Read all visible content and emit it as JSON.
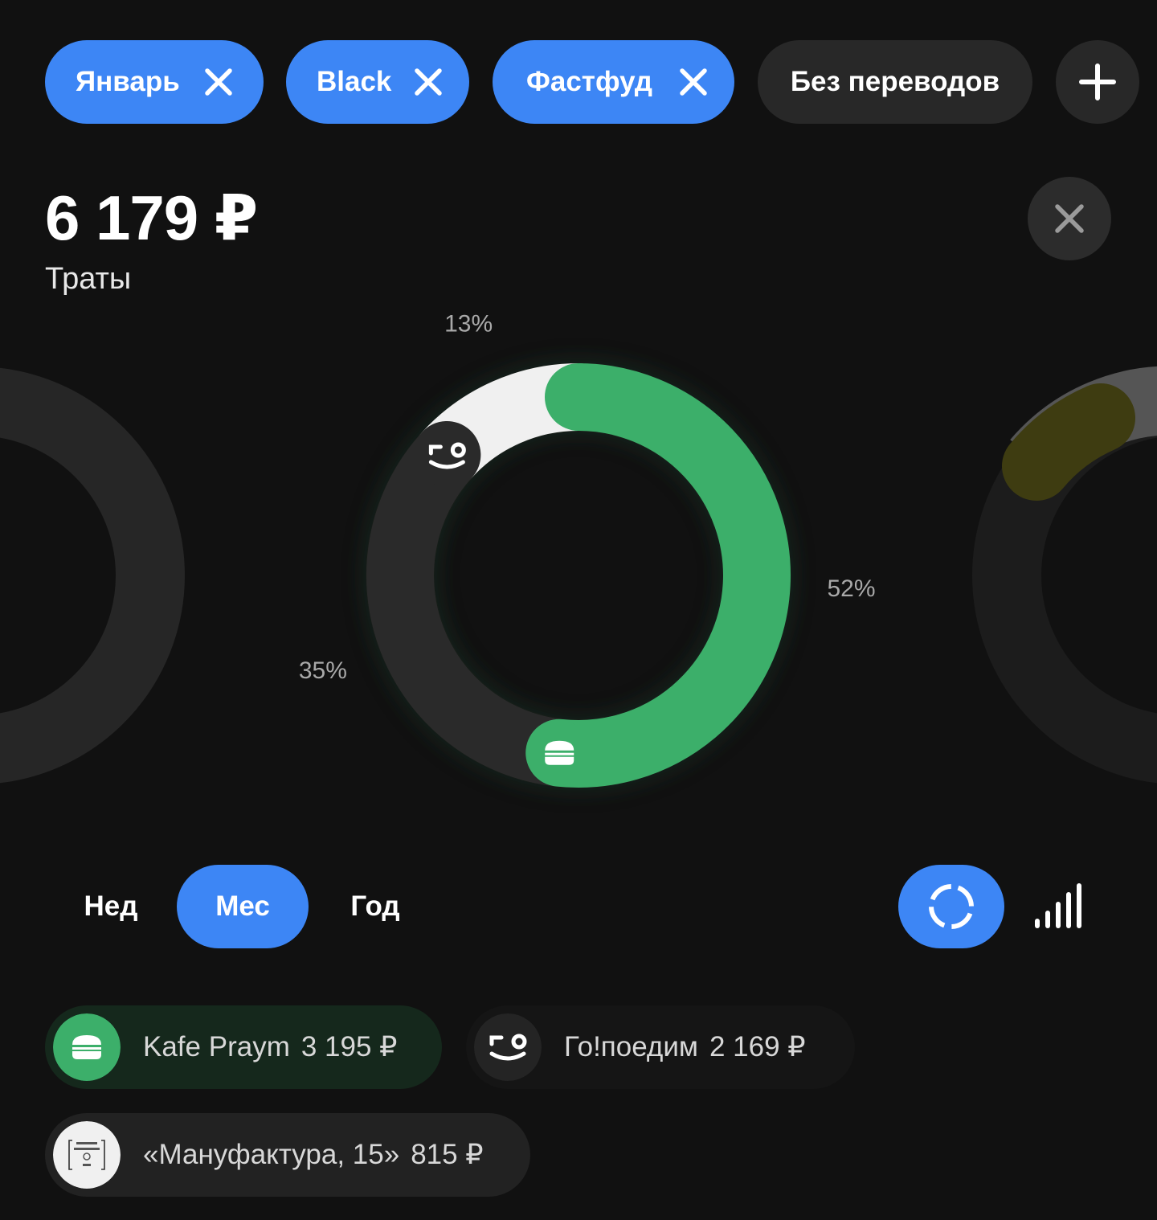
{
  "filters": {
    "chips": [
      {
        "label": "Январь",
        "active": true
      },
      {
        "label": "Black",
        "active": true
      },
      {
        "label": "Фастфуд",
        "active": true
      },
      {
        "label": "Без переводов",
        "active": false
      }
    ]
  },
  "summary": {
    "amount": "6 179 ₽",
    "label": "Траты"
  },
  "chart_data": {
    "type": "pie",
    "categories": [
      "Kafe Praym",
      "Го!поедим",
      "«Мануфактура, 15»"
    ],
    "values": [
      3195,
      2169,
      815
    ],
    "percent_labels": [
      "52%",
      "35%",
      "13%"
    ],
    "colors": [
      "#3caf6a",
      "#2a2a2a",
      "#f0f0f0"
    ]
  },
  "period": {
    "options": [
      {
        "label": "Нед",
        "selected": false
      },
      {
        "label": "Мес",
        "selected": true
      },
      {
        "label": "Год",
        "selected": false
      }
    ]
  },
  "merchants": [
    {
      "name": "Kafe Praym",
      "amount": "3 195 ₽",
      "icon": "burger-icon",
      "color": "#3caf6a"
    },
    {
      "name": "Го!поедим",
      "amount": "2 169 ₽",
      "icon": "smile-logo-icon",
      "color": "#2a2a2a"
    },
    {
      "name": "«Мануфактура, 15»",
      "amount": "815 ₽",
      "icon": "manufaktura-logo-icon",
      "color": "#f0f0f0"
    }
  ],
  "icons": {
    "chip_remove": "close-icon",
    "add_filter": "plus-icon",
    "close": "close-icon",
    "view_donut": "donut-chart-icon",
    "view_bars": "bar-chart-icon"
  },
  "colors": {
    "accent": "#3d86f5",
    "background": "#111111",
    "chip_inactive": "#282828"
  }
}
